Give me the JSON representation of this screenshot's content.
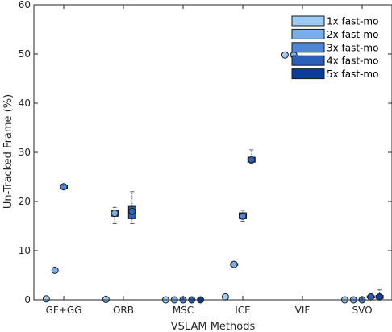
{
  "chart_data": {
    "type": "box",
    "xlabel": "VSLAM Methods",
    "ylabel": "Un-Tracked Frame (%)",
    "ylim": [
      0,
      60
    ],
    "yticks": [
      0,
      10,
      20,
      30,
      40,
      50,
      60
    ],
    "categories": [
      "GF+GG",
      "ORB",
      "MSC",
      "ICE",
      "VIF",
      "SVO"
    ],
    "grid": false,
    "legend_position": "top-right",
    "series": [
      {
        "name": "1x fast-mo",
        "color": "#9ecbf5",
        "boxes": [
          {
            "category": "GF+GG",
            "min": 0.2,
            "q1": 0.2,
            "median": 0.2,
            "q3": 0.2,
            "max": 0.2,
            "mean": 0.2
          },
          {
            "category": "ORB",
            "min": 0.1,
            "q1": 0.1,
            "median": 0.1,
            "q3": 0.1,
            "max": 0.1,
            "mean": 0.1
          },
          {
            "category": "MSC",
            "min": 0.0,
            "q1": 0.0,
            "median": 0.0,
            "q3": 0.0,
            "max": 0.0,
            "mean": 0.0
          },
          {
            "category": "ICE",
            "min": 0.6,
            "q1": 0.6,
            "median": 0.6,
            "q3": 0.6,
            "max": 0.6,
            "mean": 0.6
          },
          {
            "category": "VIF",
            "min": 49.8,
            "q1": 49.8,
            "median": 49.8,
            "q3": 49.8,
            "max": 49.8,
            "mean": 49.8
          },
          {
            "category": "SVO",
            "min": 0.0,
            "q1": 0.0,
            "median": 0.0,
            "q3": 0.0,
            "max": 0.0,
            "mean": 0.0
          }
        ]
      },
      {
        "name": "2x fast-mo",
        "color": "#7aaeea",
        "boxes": [
          {
            "category": "GF+GG",
            "min": 6.0,
            "q1": 6.0,
            "median": 6.0,
            "q3": 6.0,
            "max": 6.0,
            "mean": 6.0
          },
          {
            "category": "ORB",
            "min": 15.5,
            "q1": 17.0,
            "median": 17.6,
            "q3": 18.2,
            "max": 18.8,
            "mean": 17.6
          },
          {
            "category": "MSC",
            "min": 0.0,
            "q1": 0.0,
            "median": 0.0,
            "q3": 0.0,
            "max": 0.0,
            "mean": 0.0
          },
          {
            "category": "ICE",
            "min": 6.8,
            "q1": 7.0,
            "median": 7.2,
            "q3": 7.4,
            "max": 7.8,
            "mean": 7.2
          },
          {
            "category": "VIF",
            "min": 49.8,
            "q1": 49.8,
            "median": 49.8,
            "q3": 49.8,
            "max": 49.8,
            "mean": 49.8
          },
          {
            "category": "SVO",
            "min": 0.0,
            "q1": 0.0,
            "median": 0.0,
            "q3": 0.0,
            "max": 0.0,
            "mean": 0.0
          }
        ]
      },
      {
        "name": "3x fast-mo",
        "color": "#4f86d6",
        "boxes": [
          {
            "category": "GF+GG",
            "min": 22.5,
            "q1": 22.7,
            "median": 23.0,
            "q3": 23.2,
            "max": 23.4,
            "mean": 23.0
          },
          {
            "category": "ORB",
            "min": null,
            "q1": null,
            "median": null,
            "q3": null,
            "max": null,
            "mean": null
          },
          {
            "category": "MSC",
            "min": 0.0,
            "q1": 0.0,
            "median": 0.0,
            "q3": 0.0,
            "max": 0.0,
            "mean": 0.0
          },
          {
            "category": "ICE",
            "min": 16.0,
            "q1": 16.5,
            "median": 17.0,
            "q3": 17.7,
            "max": 18.2,
            "mean": 17.0
          },
          {
            "category": "VIF",
            "min": null,
            "q1": null,
            "median": null,
            "q3": null,
            "max": null,
            "mean": null
          },
          {
            "category": "SVO",
            "min": 0.0,
            "q1": 0.0,
            "median": 0.0,
            "q3": 0.0,
            "max": 0.0,
            "mean": 0.0
          }
        ]
      },
      {
        "name": "4x fast-mo",
        "color": "#2a5fb8",
        "boxes": [
          {
            "category": "GF+GG",
            "min": null,
            "q1": null,
            "median": null,
            "q3": null,
            "max": null,
            "mean": null
          },
          {
            "category": "ORB",
            "min": 15.5,
            "q1": 16.5,
            "median": 17.8,
            "q3": 19.0,
            "max": 22.0,
            "mean": 18.0
          },
          {
            "category": "MSC",
            "min": 0.0,
            "q1": 0.0,
            "median": 0.0,
            "q3": 0.0,
            "max": 0.0,
            "mean": 0.0
          },
          {
            "category": "ICE",
            "min": 27.8,
            "q1": 28.0,
            "median": 28.5,
            "q3": 29.0,
            "max": 30.5,
            "mean": 28.5
          },
          {
            "category": "VIF",
            "min": null,
            "q1": null,
            "median": null,
            "q3": null,
            "max": null,
            "mean": null
          },
          {
            "category": "SVO",
            "min": 0.3,
            "q1": 0.4,
            "median": 0.6,
            "q3": 0.8,
            "max": 1.0,
            "mean": 0.6
          }
        ]
      },
      {
        "name": "5x fast-mo",
        "color": "#0a3c9c",
        "boxes": [
          {
            "category": "GF+GG",
            "min": null,
            "q1": null,
            "median": null,
            "q3": null,
            "max": null,
            "mean": null
          },
          {
            "category": "ORB",
            "min": null,
            "q1": null,
            "median": null,
            "q3": null,
            "max": null,
            "mean": null
          },
          {
            "category": "MSC",
            "min": 0.0,
            "q1": 0.0,
            "median": 0.0,
            "q3": 0.0,
            "max": 0.0,
            "mean": 0.0
          },
          {
            "category": "ICE",
            "min": null,
            "q1": null,
            "median": null,
            "q3": null,
            "max": null,
            "mean": null
          },
          {
            "category": "VIF",
            "min": null,
            "q1": null,
            "median": null,
            "q3": null,
            "max": null,
            "mean": null
          },
          {
            "category": "SVO",
            "min": 0.2,
            "q1": 0.3,
            "median": 0.5,
            "q3": 0.9,
            "max": 2.0,
            "mean": 0.6
          }
        ]
      }
    ]
  }
}
